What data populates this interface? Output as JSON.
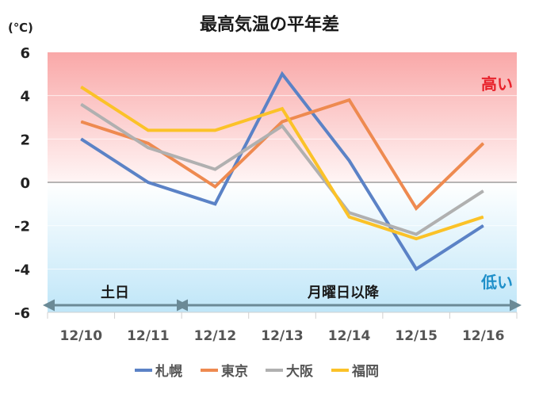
{
  "chart_data": {
    "type": "line",
    "title": "最高気温の平年差",
    "unit_label": "(℃)",
    "categories": [
      "12/10",
      "12/11",
      "12/12",
      "12/13",
      "12/14",
      "12/15",
      "12/16"
    ],
    "ylim": [
      -6,
      6
    ],
    "yticks": [
      6,
      4,
      2,
      0,
      -2,
      -4,
      -6
    ],
    "series": [
      {
        "name": "札幌",
        "color": "#5b82c6",
        "values": [
          2.0,
          0.0,
          -1.0,
          5.0,
          1.0,
          -4.0,
          -2.0
        ]
      },
      {
        "name": "東京",
        "color": "#ee8a50",
        "values": [
          2.8,
          1.8,
          -0.2,
          2.8,
          3.8,
          -1.2,
          1.8
        ]
      },
      {
        "name": "大阪",
        "color": "#b0b0b0",
        "values": [
          3.6,
          1.6,
          0.6,
          2.6,
          -1.4,
          -2.4,
          -0.4
        ]
      },
      {
        "name": "福岡",
        "color": "#fbc228",
        "values": [
          4.4,
          2.4,
          2.4,
          3.4,
          -1.6,
          -2.6,
          -1.6
        ]
      }
    ],
    "annotations": {
      "high": "高い",
      "low": "低い",
      "weekend": "土日",
      "weekday": "月曜日以降"
    },
    "grid": true,
    "legend_position": "bottom"
  }
}
